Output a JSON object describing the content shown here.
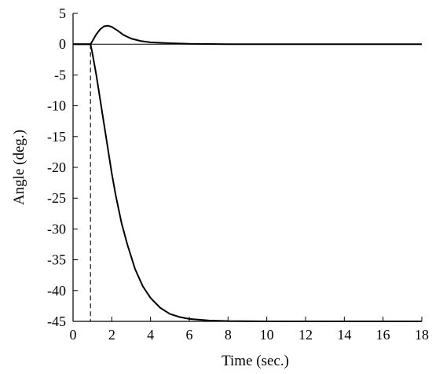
{
  "chart_data": {
    "type": "line",
    "xlabel": "Time (sec.)",
    "ylabel": "Angle (deg.)",
    "xlim": [
      0,
      18
    ],
    "ylim": [
      -45,
      5
    ],
    "x_ticks": [
      0,
      2,
      4,
      6,
      8,
      10,
      12,
      14,
      16,
      18
    ],
    "y_ticks": [
      5,
      0,
      -5,
      -10,
      -15,
      -20,
      -25,
      -30,
      -35,
      -40,
      -45
    ],
    "grid": false,
    "series": [
      {
        "style": "solid",
        "x": [
          0,
          0.9,
          1.0,
          1.2,
          1.4,
          1.6,
          1.8,
          2.0,
          2.3,
          2.6,
          3.0,
          3.5,
          4.0,
          5.0,
          6.0,
          8.0,
          10,
          12,
          14,
          16,
          18
        ],
        "y": [
          0,
          0,
          0.5,
          1.6,
          2.4,
          2.9,
          3.0,
          2.8,
          2.2,
          1.5,
          0.9,
          0.5,
          0.3,
          0.15,
          0.05,
          0,
          0,
          0,
          0,
          0,
          0
        ]
      },
      {
        "style": "solid",
        "x": [
          0,
          0.9,
          1.0,
          1.2,
          1.4,
          1.6,
          1.8,
          2.0,
          2.2,
          2.5,
          2.8,
          3.2,
          3.6,
          4.0,
          4.5,
          5.0,
          5.5,
          6.0,
          7.0,
          8.0,
          10,
          12,
          14,
          16,
          18
        ],
        "y": [
          0,
          0,
          -1.5,
          -5,
          -9,
          -13,
          -17,
          -21,
          -24.5,
          -29,
          -32.5,
          -36.5,
          -39.3,
          -41.2,
          -42.8,
          -43.8,
          -44.3,
          -44.6,
          -44.85,
          -44.95,
          -45,
          -45,
          -45,
          -45,
          -45
        ]
      },
      {
        "style": "dashed",
        "x": [
          0.9,
          0.9,
          18
        ],
        "y": [
          0,
          -45,
          -45
        ]
      }
    ]
  }
}
